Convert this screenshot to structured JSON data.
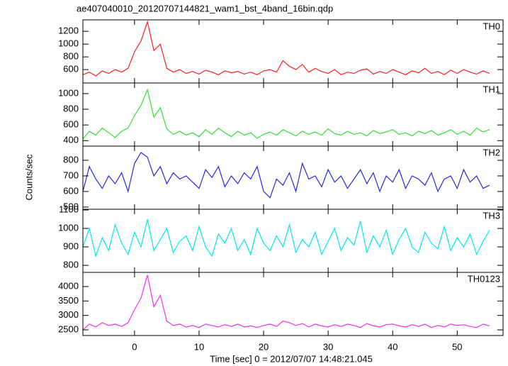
{
  "title": "ae407040010_20120707144821_wam1_bst_4band_16bin.qdp",
  "xlabel": "Time [sec] 0 = 2012/07/07 14:48:21.045",
  "ylabel": "Counts/sec",
  "chart_data": [
    {
      "type": "line",
      "label": "TH0",
      "color": "#ff2020",
      "x": [
        -8,
        -7,
        -6,
        -5,
        -4,
        -3,
        -2,
        -1,
        0,
        1,
        2,
        3,
        4,
        5,
        6,
        7,
        8,
        9,
        10,
        11,
        12,
        13,
        14,
        15,
        16,
        17,
        18,
        19,
        20,
        21,
        22,
        23,
        24,
        25,
        26,
        27,
        28,
        29,
        30,
        31,
        32,
        33,
        34,
        35,
        36,
        37,
        38,
        39,
        40,
        41,
        42,
        43,
        44,
        45,
        46,
        47,
        48,
        49,
        50,
        51,
        52,
        53,
        54,
        55
      ],
      "values": [
        520,
        560,
        500,
        580,
        540,
        600,
        560,
        620,
        880,
        1050,
        1350,
        900,
        1000,
        620,
        560,
        600,
        540,
        570,
        530,
        590,
        560,
        520,
        580,
        550,
        570,
        530,
        560,
        520,
        580,
        600,
        560,
        740,
        650,
        600,
        680,
        560,
        620,
        570,
        540,
        600,
        520,
        560,
        540,
        590,
        610,
        530,
        570,
        540,
        600,
        560,
        520,
        580,
        550,
        620,
        540,
        570,
        520,
        590,
        540,
        600,
        560,
        530,
        580,
        540
      ],
      "xlim": [
        -8,
        57.1
      ],
      "ylim": [
        390,
        1380
      ],
      "xticks": [
        0,
        10,
        20,
        30,
        40,
        50
      ],
      "yticks": [
        600,
        800,
        1000,
        1200
      ]
    },
    {
      "type": "line",
      "label": "TH1",
      "color": "#30e030",
      "x": [
        -8,
        -7,
        -6,
        -5,
        -4,
        -3,
        -2,
        -1,
        0,
        1,
        2,
        3,
        4,
        5,
        6,
        7,
        8,
        9,
        10,
        11,
        12,
        13,
        14,
        15,
        16,
        17,
        18,
        19,
        20,
        21,
        22,
        23,
        24,
        25,
        26,
        27,
        28,
        29,
        30,
        31,
        32,
        33,
        34,
        35,
        36,
        37,
        38,
        39,
        40,
        41,
        42,
        43,
        44,
        45,
        46,
        47,
        48,
        49,
        50,
        51,
        52,
        53,
        54,
        55
      ],
      "values": [
        420,
        520,
        470,
        560,
        500,
        440,
        520,
        560,
        720,
        850,
        1050,
        700,
        820,
        550,
        480,
        520,
        470,
        500,
        450,
        540,
        480,
        560,
        500,
        450,
        520,
        470,
        500,
        430,
        480,
        510,
        470,
        540,
        500,
        460,
        520,
        480,
        510,
        470,
        550,
        490,
        470,
        520,
        480,
        500,
        460,
        530,
        490,
        510,
        540,
        480,
        500,
        460,
        520,
        490,
        530,
        470,
        500,
        540,
        480,
        520,
        470,
        560,
        510,
        540
      ],
      "xlim": [
        -8,
        57.1
      ],
      "ylim": [
        330,
        1135
      ],
      "xticks": [
        0,
        10,
        20,
        30,
        40,
        50
      ],
      "yticks": [
        400,
        600,
        800,
        1000
      ]
    },
    {
      "type": "line",
      "label": "TH2",
      "color": "#2828e0",
      "x": [
        -8,
        -7,
        -6,
        -5,
        -4,
        -3,
        -2,
        -1,
        0,
        1,
        2,
        3,
        4,
        5,
        6,
        7,
        8,
        9,
        10,
        11,
        12,
        13,
        14,
        15,
        16,
        17,
        18,
        19,
        20,
        21,
        22,
        23,
        24,
        25,
        26,
        27,
        28,
        29,
        30,
        31,
        32,
        33,
        34,
        35,
        36,
        37,
        38,
        39,
        40,
        41,
        42,
        43,
        44,
        45,
        46,
        47,
        48,
        49,
        50,
        51,
        52,
        53,
        54,
        55
      ],
      "values": [
        600,
        760,
        680,
        620,
        700,
        650,
        720,
        600,
        780,
        850,
        820,
        700,
        760,
        650,
        720,
        680,
        700,
        660,
        620,
        740,
        690,
        760,
        630,
        700,
        650,
        720,
        680,
        760,
        600,
        560,
        680,
        640,
        720,
        600,
        780,
        680,
        700,
        630,
        740,
        660,
        700,
        620,
        680,
        740,
        650,
        720,
        600,
        700,
        660,
        740,
        620,
        700,
        680,
        640,
        720,
        600,
        680,
        700,
        620,
        740,
        660,
        700,
        620,
        640
      ],
      "xlim": [
        -8,
        57.1
      ],
      "ylim": [
        486,
        891
      ],
      "xticks": [
        0,
        10,
        20,
        30,
        40,
        50
      ],
      "yticks": [
        500,
        600,
        700,
        800
      ]
    },
    {
      "type": "line",
      "label": "TH3",
      "color": "#00e8f0",
      "x": [
        -8,
        -7,
        -6,
        -5,
        -4,
        -3,
        -2,
        -1,
        0,
        1,
        2,
        3,
        4,
        5,
        6,
        7,
        8,
        9,
        10,
        11,
        12,
        13,
        14,
        15,
        16,
        17,
        18,
        19,
        20,
        21,
        22,
        23,
        24,
        25,
        26,
        27,
        28,
        29,
        30,
        31,
        32,
        33,
        34,
        35,
        36,
        37,
        38,
        39,
        40,
        41,
        42,
        43,
        44,
        45,
        46,
        47,
        48,
        49,
        50,
        51,
        52,
        53,
        54,
        55
      ],
      "values": [
        900,
        1000,
        850,
        950,
        880,
        1020,
        920,
        860,
        980,
        900,
        1050,
        880,
        940,
        1000,
        870,
        930,
        960,
        880,
        1010,
        900,
        850,
        970,
        920,
        1000,
        880,
        940,
        860,
        1000,
        920,
        880,
        960,
        900,
        1020,
        870,
        940,
        900,
        980,
        860,
        930,
        1000,
        880,
        950,
        910,
        1040,
        870,
        960,
        900,
        990,
        860,
        940,
        1000,
        900,
        870,
        980,
        920,
        890,
        1010,
        880,
        950,
        900,
        970,
        860,
        930,
        990
      ],
      "xlim": [
        -8,
        57.1
      ],
      "ylim": [
        762,
        1104
      ],
      "xticks": [
        0,
        10,
        20,
        30,
        40,
        50
      ],
      "yticks": [
        800,
        900,
        1000,
        1100
      ]
    },
    {
      "type": "line",
      "label": "TH0123",
      "color": "#f030f0",
      "x": [
        -8,
        -7,
        -6,
        -5,
        -4,
        -3,
        -2,
        -1,
        0,
        1,
        2,
        3,
        4,
        5,
        6,
        7,
        8,
        9,
        10,
        11,
        12,
        13,
        14,
        15,
        16,
        17,
        18,
        19,
        20,
        21,
        22,
        23,
        24,
        25,
        26,
        27,
        28,
        29,
        30,
        31,
        32,
        33,
        34,
        35,
        36,
        37,
        38,
        39,
        40,
        41,
        42,
        43,
        44,
        45,
        46,
        47,
        48,
        49,
        50,
        51,
        52,
        53,
        54,
        55
      ],
      "values": [
        2500,
        2700,
        2600,
        2750,
        2650,
        2700,
        2620,
        2750,
        3200,
        3600,
        4400,
        3300,
        3700,
        2800,
        2650,
        2700,
        2600,
        2650,
        2580,
        2700,
        2650,
        2600,
        2680,
        2620,
        2700,
        2600,
        2640,
        2580,
        2650,
        2700,
        2620,
        2800,
        2750,
        2650,
        2720,
        2600,
        2700,
        2640,
        2600,
        2680,
        2620,
        2700,
        2650,
        2580,
        2720,
        2640,
        2600,
        2680,
        2700,
        2640,
        2600,
        2680,
        2620,
        2700,
        2580,
        2650,
        2600,
        2700,
        2650,
        2680,
        2620,
        2580,
        2700,
        2640
      ],
      "xlim": [
        -8,
        57.1
      ],
      "ylim": [
        2305,
        4490
      ],
      "xticks": [
        0,
        10,
        20,
        30,
        40,
        50
      ],
      "yticks": [
        2500,
        3000,
        3500,
        4000
      ]
    }
  ]
}
